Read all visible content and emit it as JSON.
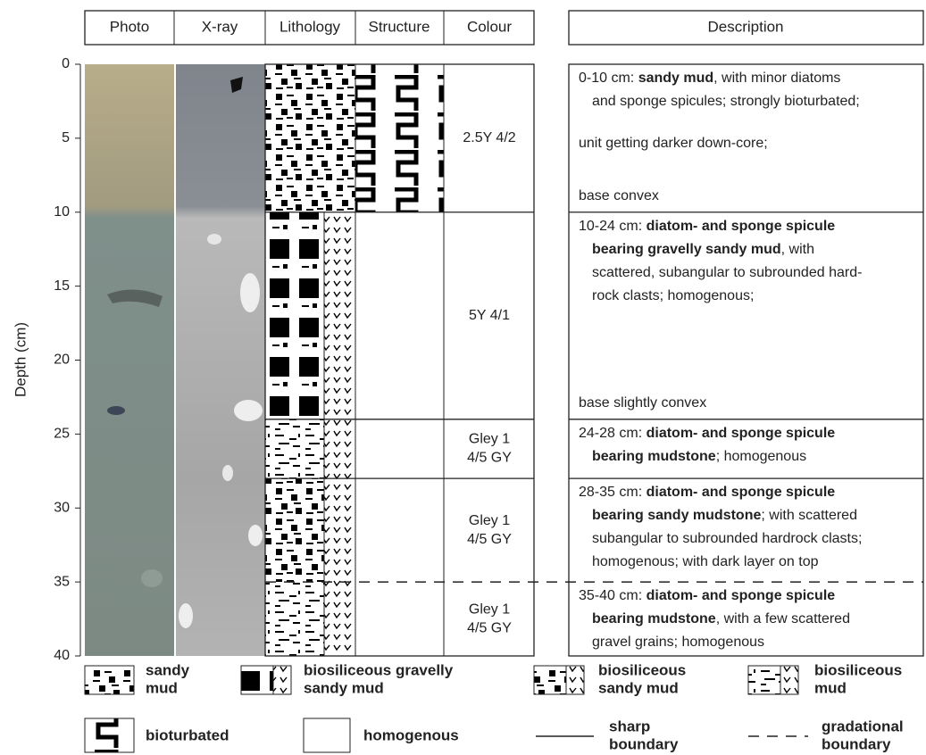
{
  "header": {
    "columns": [
      "Photo",
      "X-ray",
      "Lithology",
      "Structure",
      "Colour"
    ],
    "description": "Description"
  },
  "axis": {
    "label": "Depth (cm)",
    "ticks": [
      0,
      5,
      10,
      15,
      20,
      25,
      30,
      35,
      40
    ]
  },
  "units": [
    {
      "top": 0,
      "bottom": 10,
      "boundary": "sharp",
      "colour": [
        "2.5Y 4/2"
      ],
      "description": [
        [
          [
            {
              "t": "0-10 cm: "
            },
            {
              "b": "sandy mud"
            },
            {
              "t": ", with minor diatoms"
            }
          ],
          [
            {
              "t": "and sponge spicules; strongly bioturbated;"
            }
          ]
        ],
        [
          [
            {
              "t": "unit getting darker down-core;"
            }
          ]
        ],
        [
          [
            {
              "t": "base convex"
            }
          ]
        ]
      ]
    },
    {
      "top": 10,
      "bottom": 24,
      "boundary": "sharp",
      "colour": [
        "5Y 4/1"
      ],
      "description": [
        [
          [
            {
              "t": "10-24 cm: "
            },
            {
              "b": "diatom- and sponge spicule"
            }
          ],
          [
            {
              "b": "bearing gravelly sandy mud"
            },
            {
              "t": ", with"
            }
          ],
          [
            {
              "t": "scattered, subangular to subrounded hard-"
            }
          ],
          [
            {
              "t": "rock clasts; homogenous;"
            }
          ]
        ],
        [
          [
            {
              "t": "base slightly convex"
            }
          ]
        ]
      ]
    },
    {
      "top": 24,
      "bottom": 28,
      "boundary": "sharp",
      "colour": [
        "Gley 1",
        "4/5 GY"
      ],
      "description": [
        [
          [
            {
              "t": "24-28 cm: "
            },
            {
              "b": "diatom- and sponge spicule"
            }
          ],
          [
            {
              "b": "bearing mudstone"
            },
            {
              "t": "; homogenous"
            }
          ]
        ]
      ]
    },
    {
      "top": 28,
      "bottom": 35,
      "boundary": "gradational",
      "colour": [
        "Gley 1",
        "4/5 GY"
      ],
      "description": [
        [
          [
            {
              "t": "28-35 cm: "
            },
            {
              "b": "diatom- and sponge spicule"
            }
          ],
          [
            {
              "b": "bearing sandy mudstone"
            },
            {
              "t": "; with scattered"
            }
          ],
          [
            {
              "t": "subangular to subrounded hardrock clasts;"
            }
          ],
          [
            {
              "t": "homogenous; with dark layer on top"
            }
          ]
        ]
      ]
    },
    {
      "top": 35,
      "bottom": 40,
      "boundary": "sharp",
      "colour": [
        "Gley 1",
        "4/5 GY"
      ],
      "description": [
        [
          [
            {
              "t": "35-40 cm: "
            },
            {
              "b": "diatom- and sponge spicule"
            }
          ],
          [
            {
              "b": "bearing mudstone"
            },
            {
              "t": ", with a few scattered"
            }
          ],
          [
            {
              "t": "gravel grains; homogenous"
            }
          ]
        ]
      ]
    }
  ],
  "legend": [
    [
      "sandy",
      "mud"
    ],
    [
      "biosiliceous gravelly",
      "sandy mud"
    ],
    [
      "biosiliceous",
      "sandy mud"
    ],
    [
      "biosiliceous",
      "mud"
    ],
    [
      "bioturbated"
    ],
    [
      "homogenous"
    ],
    [
      "sharp",
      "boundary"
    ],
    [
      "gradational",
      "boundary"
    ]
  ]
}
